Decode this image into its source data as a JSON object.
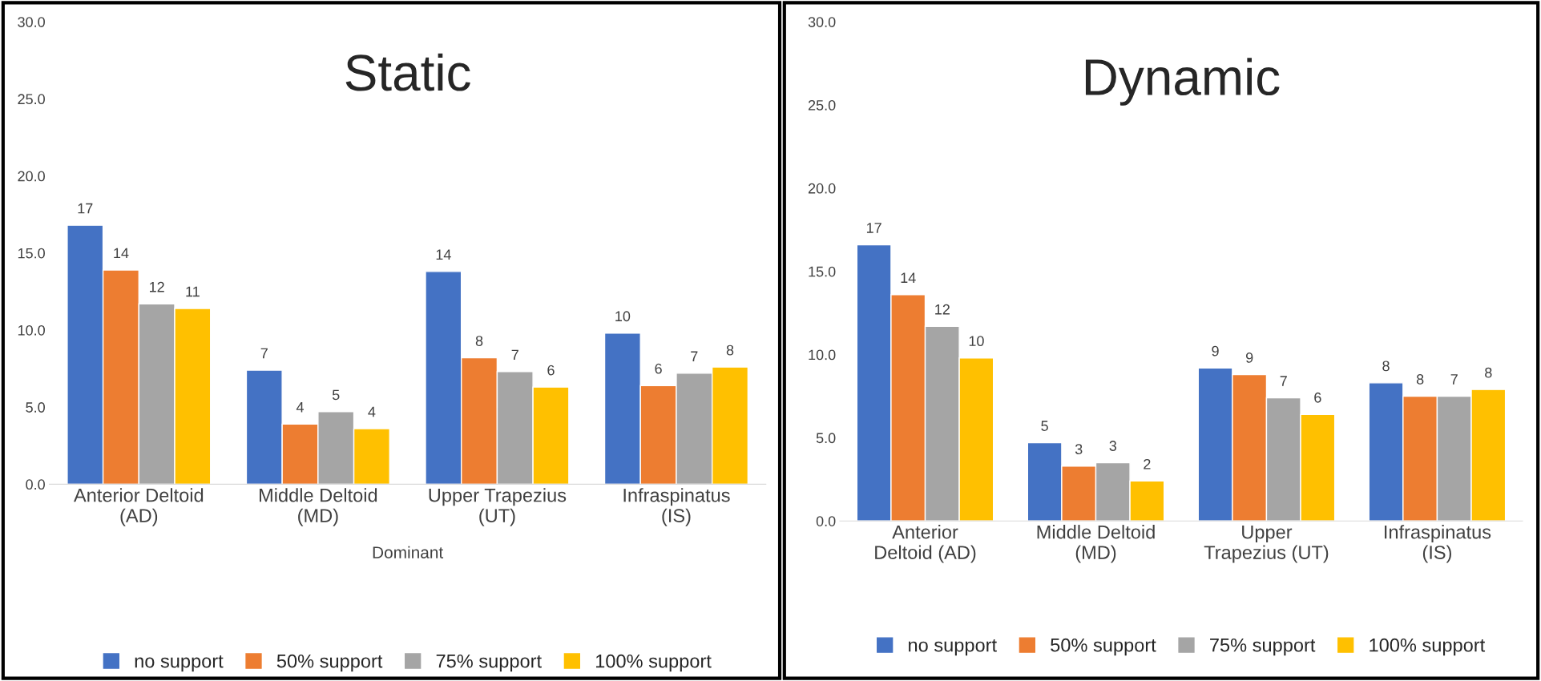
{
  "chart_data": [
    {
      "type": "bar",
      "title": "Static",
      "xlabel": "Dominant",
      "categories": [
        "Anterior Deltoid\n(AD)",
        "Middle Deltoid\n(MD)",
        "Upper Trapezius\n(UT)",
        "Infraspinatus\n(IS)"
      ],
      "series": [
        {
          "name": "no support",
          "color": "#4472c4",
          "values": [
            16.8,
            7.4,
            13.8,
            9.8
          ],
          "value_labels": [
            "17",
            "7",
            "14",
            "10"
          ]
        },
        {
          "name": "50% support",
          "color": "#ed7d31",
          "values": [
            13.9,
            3.9,
            8.2,
            6.4
          ],
          "value_labels": [
            "14",
            "4",
            "8",
            "6"
          ]
        },
        {
          "name": "75% support",
          "color": "#a5a5a5",
          "values": [
            11.7,
            4.7,
            7.3,
            7.2
          ],
          "value_labels": [
            "12",
            "5",
            "7",
            "7"
          ]
        },
        {
          "name": "100% support",
          "color": "#ffc000",
          "values": [
            11.4,
            3.6,
            6.3,
            7.6
          ],
          "value_labels": [
            "11",
            "4",
            "6",
            "8"
          ]
        }
      ],
      "ylim": [
        0,
        30
      ],
      "yticks": [
        {
          "value": 0,
          "label": "0.0"
        },
        {
          "value": 5,
          "label": "5.0"
        },
        {
          "value": 10,
          "label": "10.0"
        },
        {
          "value": 15,
          "label": "15.0"
        },
        {
          "value": 20,
          "label": "20.0"
        },
        {
          "value": 25,
          "label": "25.0"
        },
        {
          "value": 30,
          "label": "30.0"
        }
      ],
      "grid": false,
      "legend": "bottom"
    },
    {
      "type": "bar",
      "title": "Dynamic",
      "categories": [
        "Anterior\nDeltoid (AD)",
        "Middle Deltoid\n(MD)",
        "Upper\nTrapezius (UT)",
        "Infraspinatus\n(IS)"
      ],
      "series": [
        {
          "name": "no support",
          "color": "#4472c4",
          "values": [
            16.6,
            4.7,
            9.2,
            8.3
          ],
          "value_labels": [
            "17",
            "5",
            "9",
            "8"
          ]
        },
        {
          "name": "50% support",
          "color": "#ed7d31",
          "values": [
            13.6,
            3.3,
            8.8,
            7.5
          ],
          "value_labels": [
            "14",
            "3",
            "9",
            "8"
          ]
        },
        {
          "name": "75% support",
          "color": "#a5a5a5",
          "values": [
            11.7,
            3.5,
            7.4,
            7.5
          ],
          "value_labels": [
            "12",
            "3",
            "7",
            "7"
          ]
        },
        {
          "name": "100% support",
          "color": "#ffc000",
          "values": [
            9.8,
            2.4,
            6.4,
            7.9
          ],
          "value_labels": [
            "10",
            "2",
            "6",
            "8"
          ]
        }
      ],
      "ylim": [
        0,
        30
      ],
      "yticks": [
        {
          "value": 0,
          "label": "0.0"
        },
        {
          "value": 5,
          "label": "5.0"
        },
        {
          "value": 10,
          "label": "10.0"
        },
        {
          "value": 15,
          "label": "15.0"
        },
        {
          "value": 20,
          "label": "20.0"
        },
        {
          "value": 25,
          "label": "25.0"
        },
        {
          "value": 30,
          "label": "30.0"
        }
      ],
      "grid": false,
      "legend": "bottom"
    }
  ]
}
